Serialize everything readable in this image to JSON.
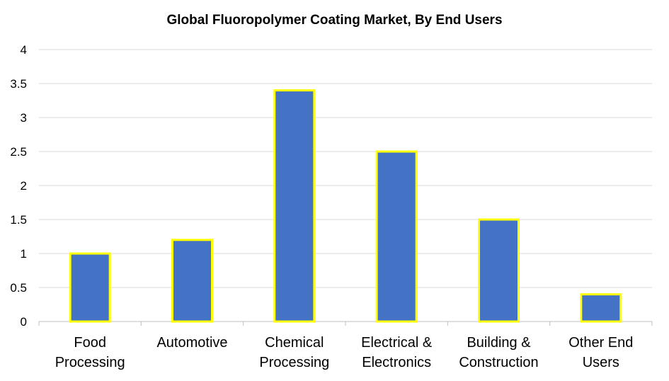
{
  "chart_data": {
    "type": "bar",
    "title": "Global Fluoropolymer Coating Market, By End Users",
    "xlabel": "",
    "ylabel": "",
    "categories": [
      [
        "Food",
        "Processing"
      ],
      [
        "Automotive"
      ],
      [
        "Chemical",
        "Processing"
      ],
      [
        "Electrical &",
        "Electronics"
      ],
      [
        "Building &",
        "Construction"
      ],
      [
        "Other End",
        "Users"
      ]
    ],
    "values": [
      1.0,
      1.2,
      3.4,
      2.5,
      1.5,
      0.4
    ],
    "ylim": [
      0,
      4
    ],
    "yticks": [
      "0",
      "0.5",
      "1",
      "1.5",
      "2",
      "2.5",
      "3",
      "3.5",
      "4"
    ],
    "grid": true,
    "legend": "none",
    "colors": {
      "bar_fill": "#4472C4",
      "bar_stroke": "#FFFF00",
      "grid": "#D9D9D9",
      "axis": "#BFBFBF"
    }
  }
}
